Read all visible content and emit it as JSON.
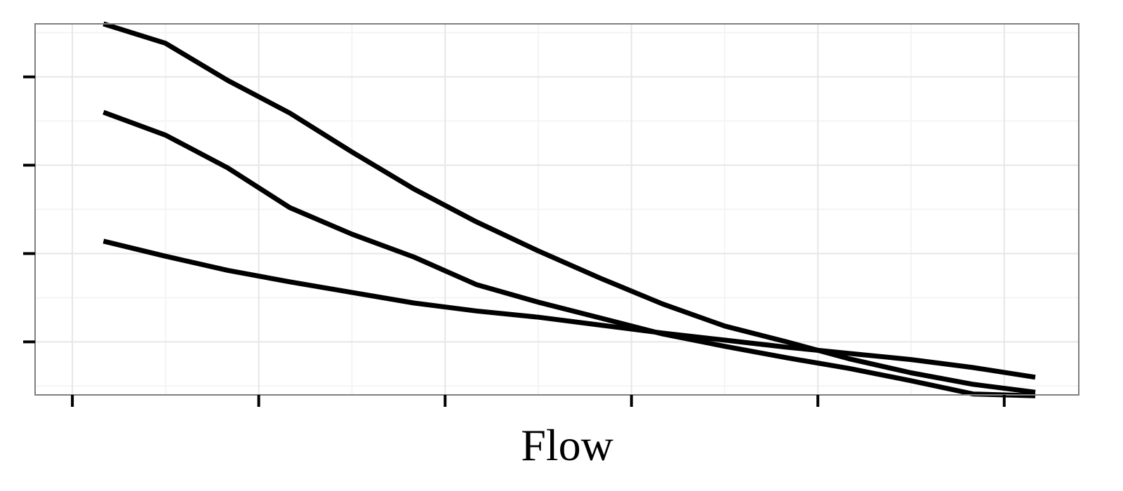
{
  "chart_data": {
    "type": "line",
    "title": "",
    "xlabel": "Flow",
    "ylabel": "",
    "x": [
      0,
      1,
      2,
      3,
      4,
      5,
      6,
      7,
      8,
      9,
      10,
      11,
      12,
      13,
      14,
      15
    ],
    "xlim": [
      -1.1,
      15.7
    ],
    "ylim": [
      -0.6,
      3.6
    ],
    "xticks": [
      -0.5,
      2.5,
      5.5,
      8.5,
      11.5,
      14.5
    ],
    "yticks": [
      0.0,
      1.0,
      2.0,
      3.0
    ],
    "grid": true,
    "legend": "none",
    "colors": {
      "line": "#000000",
      "grid_major": "#e6e6e6",
      "grid_minor": "#f4f4f4",
      "frame": "#7f7f7f"
    },
    "series": [
      {
        "values": [
          3.6,
          3.38,
          2.96,
          2.59,
          2.15,
          1.73,
          1.36,
          1.03,
          0.72,
          0.43,
          0.18,
          0.0,
          -0.19,
          -0.35,
          -0.48,
          -0.57
        ]
      },
      {
        "values": [
          2.6,
          2.34,
          1.97,
          1.52,
          1.22,
          0.96,
          0.65,
          0.45,
          0.27,
          0.09,
          -0.05,
          -0.18,
          -0.3,
          -0.44,
          -0.59,
          -0.61
        ]
      },
      {
        "values": [
          1.14,
          0.97,
          0.81,
          0.68,
          0.56,
          0.44,
          0.35,
          0.28,
          0.19,
          0.1,
          0.02,
          -0.06,
          -0.13,
          -0.2,
          -0.29,
          -0.4
        ]
      }
    ]
  }
}
